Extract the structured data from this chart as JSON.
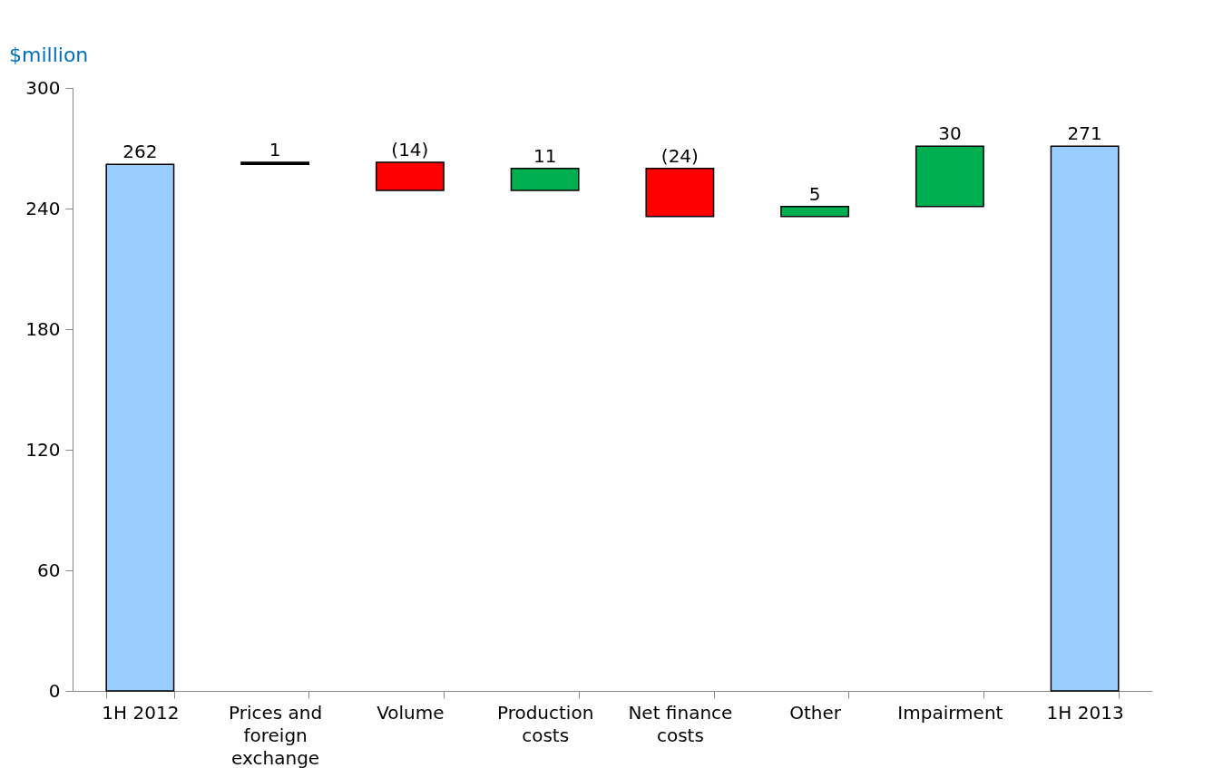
{
  "chart_data": {
    "type": "bar",
    "ylabel": "$million",
    "categories": [
      "1H 2012",
      "Prices and foreign exchange",
      "Volume",
      "Production costs",
      "Net finance costs",
      "Other",
      "Impairment",
      "1H 2013"
    ],
    "values": [
      262,
      1,
      -14,
      11,
      -24,
      5,
      30,
      271
    ],
    "base": [
      0,
      262,
      263,
      249,
      260,
      236,
      241,
      0
    ],
    "colors": [
      "#99ccff",
      "#000000",
      "#ff0000",
      "#00b050",
      "#ff0000",
      "#00b050",
      "#00b050",
      "#99ccff"
    ],
    "value_labels": [
      "262",
      "1",
      "(14)",
      "11",
      "(24)",
      "5",
      "30",
      "271"
    ],
    "ylim": [
      0,
      300
    ],
    "yticks": [
      0,
      60,
      120,
      180,
      240,
      300
    ]
  }
}
